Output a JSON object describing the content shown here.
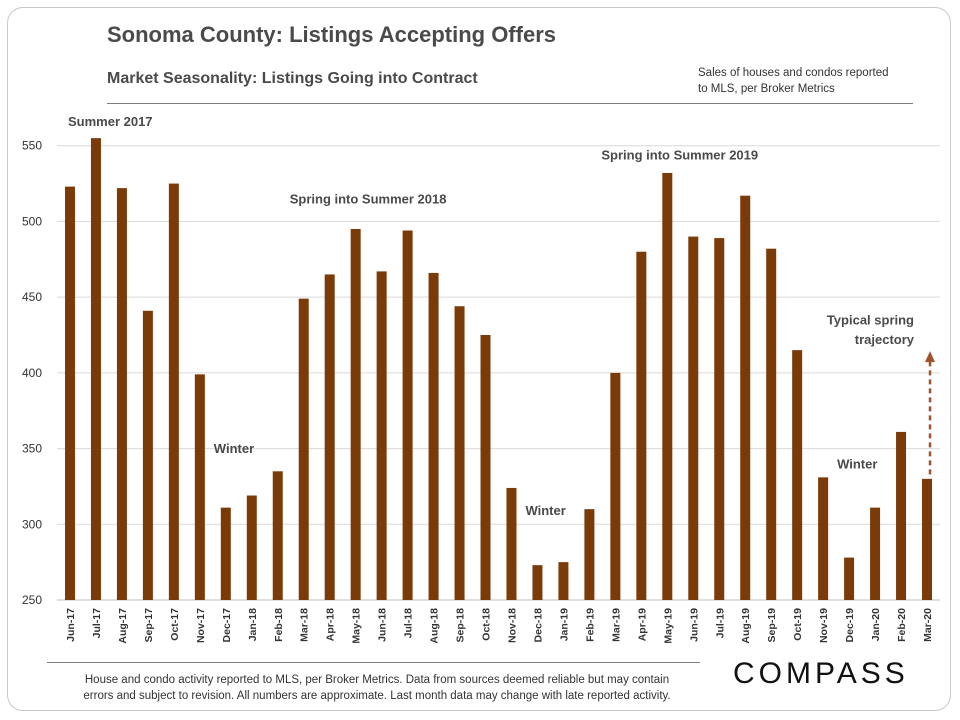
{
  "header": {
    "title": "Sonoma County: Listings Accepting Offers",
    "subtitle": "Market Seasonality: Listings Going into Contract",
    "note_line1": "Sales of houses and condos reported",
    "note_line2": "to MLS, per Broker Metrics"
  },
  "footer": {
    "line1": "House and condo activity reported to MLS, per Broker Metrics. Data from sources deemed reliable but may contain",
    "line2": "errors and subject to revision. All numbers are approximate. Last month data may change with late reported activity.",
    "logo": "COMPASS"
  },
  "colors": {
    "bar": "#7a3b08",
    "grid": "#d9d9d9",
    "arrow": "#a0522d",
    "text": "#4a4a4a"
  },
  "chart_data": {
    "type": "bar",
    "categories": [
      "Jun-17",
      "Jul-17",
      "Aug-17",
      "Sep-17",
      "Oct-17",
      "Nov-17",
      "Dec-17",
      "Jan-18",
      "Feb-18",
      "Mar-18",
      "Apr-18",
      "May-18",
      "Jun-18",
      "Jul-18",
      "Aug-18",
      "Sep-18",
      "Oct-18",
      "Nov-18",
      "Dec-18",
      "Jan-19",
      "Feb-19",
      "Mar-19",
      "Apr-19",
      "May-19",
      "Jun-19",
      "Jul-19",
      "Aug-19",
      "Sep-19",
      "Oct-19",
      "Nov-19",
      "Dec-19",
      "Jan-20",
      "Feb-20",
      "Mar-20"
    ],
    "values": [
      523,
      555,
      522,
      441,
      525,
      399,
      311,
      319,
      335,
      449,
      465,
      495,
      467,
      494,
      466,
      444,
      425,
      324,
      273,
      275,
      310,
      400,
      480,
      532,
      490,
      489,
      517,
      482,
      415,
      331,
      278,
      311,
      361,
      330
    ],
    "yticks": [
      250,
      300,
      350,
      400,
      450,
      500,
      550
    ],
    "ylim": [
      250,
      565
    ],
    "grid": true,
    "annotations": [
      {
        "name": "annotation-summer-2017",
        "text": "Summer 2017",
        "category": "Jun-17",
        "value": 563
      },
      {
        "name": "annotation-spring-summer-2018",
        "text": "Spring into Summer 2018",
        "category": "Mar-18",
        "value": 512
      },
      {
        "name": "annotation-spring-summer-2019",
        "text": "Spring into Summer 2019",
        "category": "Mar-19",
        "value": 541
      },
      {
        "name": "annotation-winter-2017",
        "text": "Winter",
        "category": "Dec-17",
        "value": 347
      },
      {
        "name": "annotation-winter-2018",
        "text": "Winter",
        "category": "Dec-18",
        "value": 306
      },
      {
        "name": "annotation-winter-2019",
        "text": "Winter",
        "category": "Dec-19",
        "value": 337
      },
      {
        "name": "annotation-typical-spring-line1",
        "text": "Typical spring",
        "category": "Mar-20",
        "value": 432
      },
      {
        "name": "annotation-typical-spring-line2",
        "text": "trajectory",
        "category": "Mar-20",
        "value": 419
      }
    ],
    "arrow": {
      "category": "Mar-20",
      "from": 333,
      "to": 413
    }
  }
}
